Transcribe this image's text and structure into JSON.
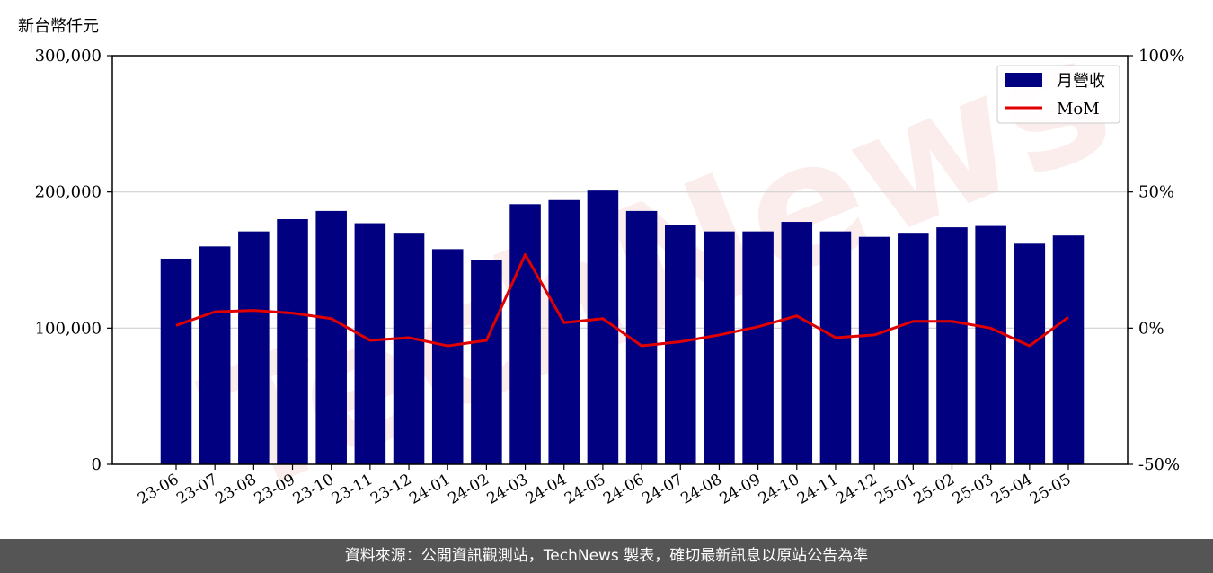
{
  "chart_data": {
    "type": "bar",
    "y_axis_title": "新台幣仟元",
    "categories": [
      "23-06",
      "23-07",
      "23-08",
      "23-09",
      "23-10",
      "23-11",
      "23-12",
      "24-01",
      "24-02",
      "24-03",
      "24-04",
      "24-05",
      "24-06",
      "24-07",
      "24-08",
      "24-09",
      "24-10",
      "24-11",
      "24-12",
      "25-01",
      "25-02",
      "25-03",
      "25-04",
      "25-05"
    ],
    "series": [
      {
        "name": "月營收",
        "type": "bar",
        "axis": "left",
        "color": "#000080",
        "values": [
          151000,
          160000,
          171000,
          180000,
          186000,
          177000,
          170000,
          158000,
          150000,
          191000,
          194000,
          201000,
          186000,
          176000,
          171000,
          171000,
          178000,
          171000,
          167000,
          170000,
          174000,
          175000,
          162000,
          168000
        ]
      },
      {
        "name": "MoM",
        "type": "line",
        "axis": "right",
        "unit": "%",
        "color": "#e00000",
        "values": [
          1.0,
          6.0,
          6.5,
          5.5,
          3.5,
          -4.5,
          -3.5,
          -6.5,
          -4.5,
          27.0,
          2.0,
          3.5,
          -6.5,
          -5.0,
          -2.5,
          0.5,
          4.5,
          -3.5,
          -2.5,
          2.5,
          2.5,
          0.0,
          -6.5,
          4.0
        ]
      }
    ],
    "y_left": {
      "ylim": [
        0,
        300000
      ],
      "ticks": [
        0,
        100000,
        200000,
        300000
      ],
      "tick_labels": [
        "0",
        "100,000",
        "200,000",
        "300,000"
      ]
    },
    "y_right": {
      "ylim": [
        -50,
        100
      ],
      "ticks": [
        -50,
        0,
        50,
        100
      ],
      "tick_labels": [
        "-50%",
        "0%",
        "50%",
        "100%"
      ]
    },
    "grid": "horizontal",
    "legend": "top-right"
  },
  "footer": {
    "text": "資料來源：公開資訊觀測站，TechNews 製表，確切最新訊息以原站公告為準"
  },
  "watermark": {
    "text": "TechNews"
  }
}
